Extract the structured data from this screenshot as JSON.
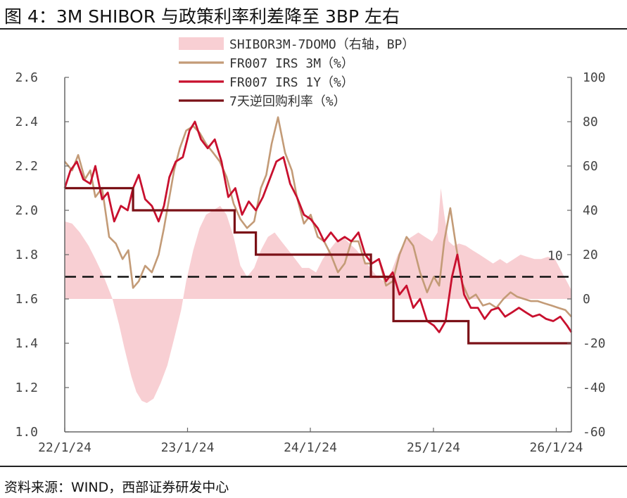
{
  "title": "图 4：3M SHIBOR 与政策利率利差降至 3BP 左右",
  "source": "资料来源：WIND，西部证券研发中心",
  "chart_data": {
    "type": "line",
    "left_axis": {
      "ticks": [
        "1.0",
        "1.2",
        "1.4",
        "1.6",
        "1.8",
        "2.0",
        "2.2",
        "2.4",
        "2.6"
      ],
      "ylim": [
        1.0,
        2.6
      ]
    },
    "right_axis": {
      "ticks": [
        "-60",
        "-40",
        "-20",
        "0",
        "20",
        "40",
        "60",
        "80",
        "100"
      ],
      "ylim": [
        -60,
        100
      ]
    },
    "x_ticks": [
      "22/1/24",
      "23/1/24",
      "24/1/24",
      "25/1/24",
      "26/1/24"
    ],
    "x_range": [
      "2022-01-24",
      "2026-03-10"
    ],
    "annotation": {
      "text": "10",
      "value": 10,
      "axis": "right",
      "line": "dashed"
    },
    "colors": {
      "spread": "#f8cfd3",
      "irs3m": "#c39b77",
      "irs1y": "#c8102e",
      "repo": "#7b1117",
      "dash": "#111111"
    },
    "series": [
      {
        "name": "SHIBOR3M-7DOMO（右轴，BP）",
        "type": "area",
        "axis": "right",
        "dates": [
          "2022-01-24",
          "2022-02-15",
          "2022-03-10",
          "2022-04-05",
          "2022-04-25",
          "2022-05-20",
          "2022-06-15",
          "2022-07-05",
          "2022-07-20",
          "2022-08-10",
          "2022-08-25",
          "2022-09-10",
          "2022-09-25",
          "2022-10-15",
          "2022-11-05",
          "2022-11-25",
          "2022-12-15",
          "2023-01-05",
          "2023-01-20",
          "2023-02-10",
          "2023-03-01",
          "2023-03-20",
          "2023-04-10",
          "2023-05-01",
          "2023-05-20",
          "2023-06-10",
          "2023-06-30",
          "2023-07-20",
          "2023-08-10",
          "2023-08-30",
          "2023-09-20",
          "2023-10-10",
          "2023-10-30",
          "2023-11-20",
          "2023-12-10",
          "2023-12-30",
          "2024-01-20",
          "2024-02-10",
          "2024-03-01",
          "2024-03-20",
          "2024-04-10",
          "2024-04-30",
          "2024-05-20",
          "2024-06-10",
          "2024-06-30",
          "2024-07-20",
          "2024-08-10",
          "2024-08-30",
          "2024-09-20",
          "2024-10-10",
          "2024-10-30",
          "2024-11-20",
          "2024-12-10",
          "2024-12-30",
          "2025-01-20",
          "2025-02-05",
          "2025-02-15",
          "2025-02-25",
          "2025-03-10",
          "2025-03-25",
          "2025-04-10",
          "2025-04-30",
          "2025-05-20",
          "2025-06-10",
          "2025-06-30",
          "2025-07-20",
          "2025-08-10",
          "2025-08-30",
          "2025-09-20",
          "2025-10-10",
          "2025-10-30",
          "2025-11-20",
          "2025-12-10",
          "2025-12-30",
          "2026-01-20",
          "2026-02-10",
          "2026-03-10"
        ],
        "values": [
          35,
          34,
          30,
          24,
          18,
          10,
          0,
          -12,
          -22,
          -35,
          -42,
          -46,
          -47,
          -45,
          -38,
          -30,
          -18,
          -5,
          8,
          22,
          32,
          38,
          40,
          42,
          38,
          28,
          15,
          10,
          14,
          22,
          28,
          30,
          26,
          22,
          18,
          14,
          14,
          12,
          18,
          22,
          26,
          28,
          25,
          22,
          18,
          14,
          10,
          8,
          12,
          20,
          26,
          28,
          30,
          28,
          26,
          30,
          50,
          38,
          26,
          24,
          25,
          24,
          22,
          20,
          18,
          16,
          18,
          16,
          18,
          20,
          19,
          18,
          18,
          19,
          18,
          12,
          4
        ]
      },
      {
        "name": "FR007 IRS 3M（%）",
        "type": "line",
        "axis": "left",
        "dates": [
          "2022-01-24",
          "2022-02-15",
          "2022-03-05",
          "2022-03-25",
          "2022-04-10",
          "2022-04-25",
          "2022-05-15",
          "2022-06-05",
          "2022-06-25",
          "2022-07-15",
          "2022-08-01",
          "2022-08-15",
          "2022-09-01",
          "2022-09-20",
          "2022-10-10",
          "2022-10-30",
          "2022-11-15",
          "2022-11-30",
          "2022-12-15",
          "2023-01-01",
          "2023-01-20",
          "2023-02-10",
          "2023-03-01",
          "2023-03-20",
          "2023-04-10",
          "2023-04-30",
          "2023-05-20",
          "2023-06-10",
          "2023-06-30",
          "2023-07-20",
          "2023-08-10",
          "2023-08-30",
          "2023-09-15",
          "2023-10-01",
          "2023-10-20",
          "2023-11-10",
          "2023-11-30",
          "2023-12-15",
          "2024-01-05",
          "2024-01-25",
          "2024-02-15",
          "2024-03-05",
          "2024-03-25",
          "2024-04-15",
          "2024-05-05",
          "2024-05-25",
          "2024-06-15",
          "2024-07-05",
          "2024-07-25",
          "2024-08-15",
          "2024-09-05",
          "2024-09-25",
          "2024-10-15",
          "2024-11-05",
          "2024-11-25",
          "2024-12-15",
          "2025-01-05",
          "2025-01-25",
          "2025-02-10",
          "2025-02-25",
          "2025-03-15",
          "2025-04-01",
          "2025-04-20",
          "2025-05-10",
          "2025-05-30",
          "2025-06-20",
          "2025-07-10",
          "2025-07-30",
          "2025-08-20",
          "2025-09-10",
          "2025-09-30",
          "2025-10-20",
          "2025-11-10",
          "2025-11-30",
          "2025-12-20",
          "2026-01-10",
          "2026-01-30",
          "2026-02-20",
          "2026-03-10"
        ],
        "values": [
          2.22,
          2.18,
          2.25,
          2.14,
          2.18,
          2.06,
          2.1,
          1.88,
          1.85,
          1.78,
          1.82,
          1.65,
          1.68,
          1.75,
          1.72,
          1.8,
          1.92,
          2.05,
          2.18,
          2.28,
          2.36,
          2.38,
          2.35,
          2.3,
          2.26,
          2.22,
          2.15,
          2.03,
          1.96,
          1.92,
          1.95,
          2.1,
          2.16,
          2.3,
          2.42,
          2.26,
          2.18,
          2.06,
          1.94,
          1.98,
          1.88,
          1.86,
          1.8,
          1.72,
          1.76,
          1.86,
          1.86,
          1.76,
          1.76,
          1.78,
          1.66,
          1.68,
          1.8,
          1.88,
          1.84,
          1.72,
          1.63,
          1.7,
          1.66,
          1.86,
          2.01,
          1.84,
          1.67,
          1.6,
          1.62,
          1.57,
          1.58,
          1.56,
          1.6,
          1.63,
          1.61,
          1.6,
          1.59,
          1.59,
          1.58,
          1.57,
          1.56,
          1.55,
          1.52
        ]
      },
      {
        "name": "FR007 IRS 1Y（%）",
        "type": "line",
        "axis": "left",
        "dates": [
          "2022-01-24",
          "2022-02-10",
          "2022-03-01",
          "2022-03-20",
          "2022-04-10",
          "2022-04-25",
          "2022-05-15",
          "2022-06-01",
          "2022-06-20",
          "2022-07-10",
          "2022-07-30",
          "2022-08-15",
          "2022-09-01",
          "2022-09-20",
          "2022-10-10",
          "2022-10-30",
          "2022-11-15",
          "2022-12-01",
          "2022-12-20",
          "2023-01-10",
          "2023-01-30",
          "2023-02-15",
          "2023-03-05",
          "2023-03-25",
          "2023-04-15",
          "2023-05-05",
          "2023-05-25",
          "2023-06-15",
          "2023-07-05",
          "2023-07-25",
          "2023-08-15",
          "2023-09-05",
          "2023-09-25",
          "2023-10-15",
          "2023-11-05",
          "2023-11-25",
          "2023-12-15",
          "2024-01-05",
          "2024-01-25",
          "2024-02-15",
          "2024-03-05",
          "2024-03-25",
          "2024-04-15",
          "2024-05-05",
          "2024-05-25",
          "2024-06-15",
          "2024-07-05",
          "2024-07-25",
          "2024-08-15",
          "2024-09-05",
          "2024-09-25",
          "2024-10-15",
          "2024-11-05",
          "2024-11-25",
          "2024-12-15",
          "2025-01-05",
          "2025-01-25",
          "2025-02-10",
          "2025-03-01",
          "2025-03-20",
          "2025-04-05",
          "2025-04-25",
          "2025-05-15",
          "2025-06-05",
          "2025-06-25",
          "2025-07-15",
          "2025-08-05",
          "2025-08-25",
          "2025-09-15",
          "2025-10-05",
          "2025-10-25",
          "2025-11-15",
          "2025-12-05",
          "2025-12-25",
          "2026-01-15",
          "2026-02-05",
          "2026-02-25",
          "2026-03-10"
        ],
        "values": [
          2.1,
          2.18,
          2.22,
          2.14,
          2.12,
          2.2,
          2.05,
          2.08,
          1.95,
          2.02,
          2.0,
          2.1,
          2.16,
          2.05,
          2.02,
          1.95,
          2.02,
          2.15,
          2.22,
          2.24,
          2.36,
          2.4,
          2.32,
          2.28,
          2.32,
          2.22,
          2.06,
          2.1,
          1.98,
          2.04,
          2.0,
          2.06,
          2.14,
          2.22,
          2.24,
          2.12,
          2.06,
          1.98,
          1.96,
          1.92,
          1.86,
          1.9,
          1.86,
          1.88,
          1.86,
          1.9,
          1.8,
          1.76,
          1.78,
          1.68,
          1.72,
          1.62,
          1.66,
          1.56,
          1.6,
          1.5,
          1.48,
          1.45,
          1.5,
          1.7,
          1.8,
          1.62,
          1.56,
          1.56,
          1.51,
          1.55,
          1.56,
          1.52,
          1.54,
          1.56,
          1.54,
          1.52,
          1.53,
          1.51,
          1.5,
          1.52,
          1.48,
          1.45
        ]
      },
      {
        "name": "7天逆回购利率（%）",
        "type": "step",
        "axis": "left",
        "dates": [
          "2022-01-24",
          "2022-08-15",
          "2023-06-13",
          "2023-08-15",
          "2024-07-22",
          "2024-09-27",
          "2025-05-08",
          "2026-03-10"
        ],
        "values": [
          2.1,
          2.0,
          1.9,
          1.8,
          1.7,
          1.5,
          1.4,
          1.4
        ]
      },
      {
        "type": "dashed",
        "axis": "right",
        "value": 10
      }
    ]
  }
}
